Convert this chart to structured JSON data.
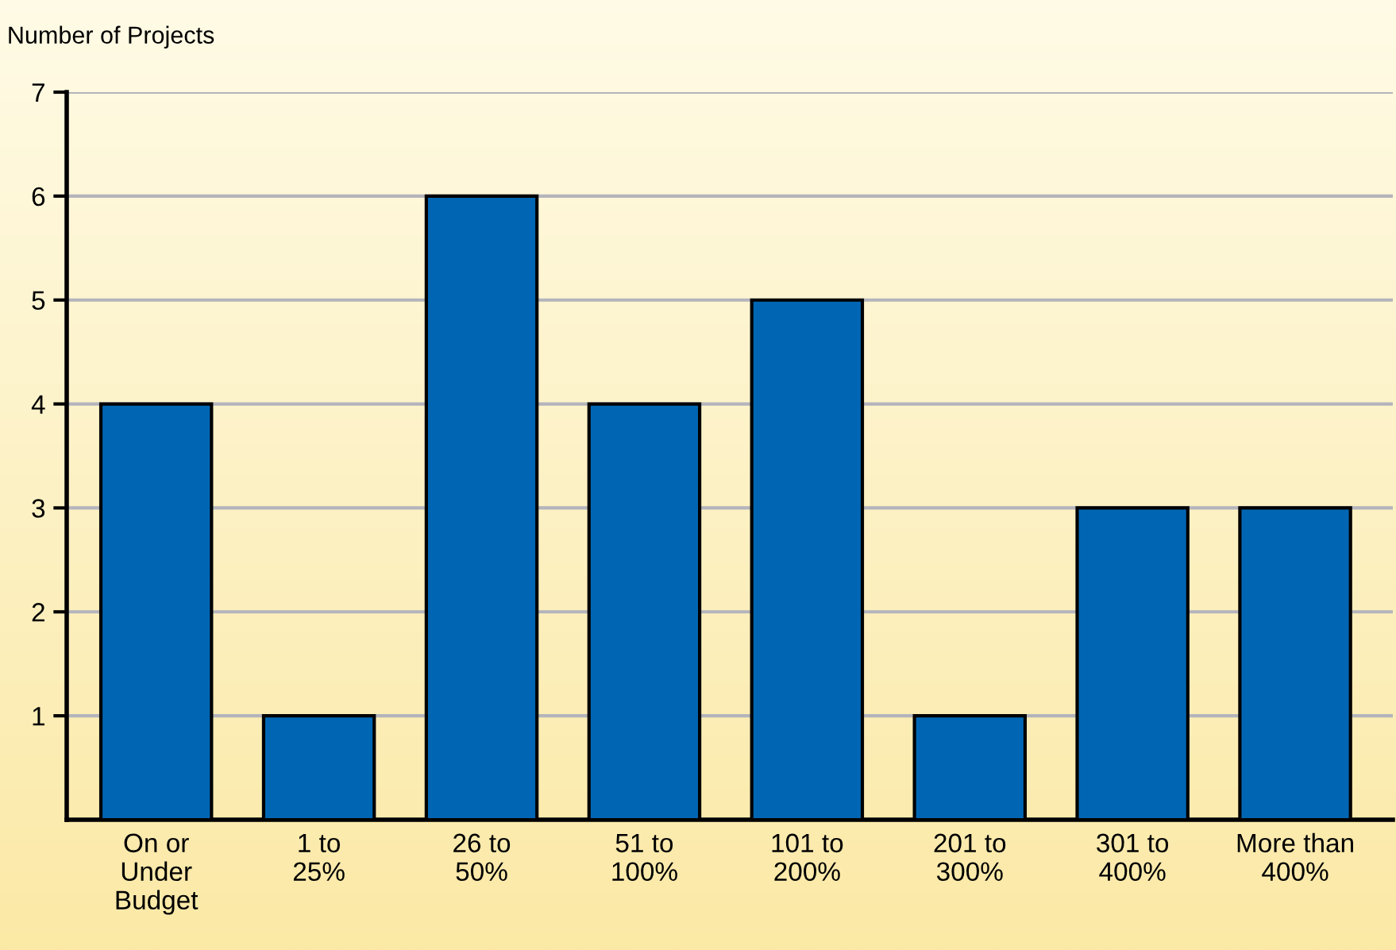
{
  "chart_data": {
    "type": "bar",
    "ylabel": "Number of Projects",
    "categories": [
      "On or\nUnder\nBudget",
      "1 to\n25%",
      "26 to\n50%",
      "51 to\n100%",
      "101 to\n200%",
      "201 to\n300%",
      "301 to\n400%",
      "More than\n400%"
    ],
    "values": [
      4,
      1,
      6,
      4,
      5,
      1,
      3,
      3
    ],
    "color": "#0066b3",
    "ylim": [
      0,
      7
    ],
    "yticks": [
      1,
      2,
      3,
      4,
      5,
      6,
      7
    ],
    "grid": "y",
    "legend": false
  }
}
